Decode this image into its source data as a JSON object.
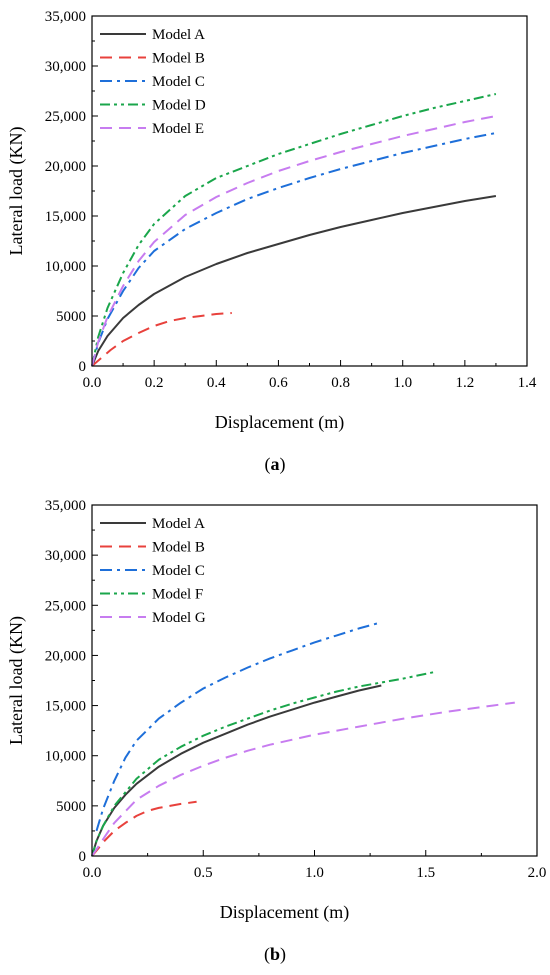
{
  "chart_data": [
    {
      "type": "line",
      "panel": "a",
      "caption_letter": "a",
      "xlabel": "Displacement (m)",
      "ylabel": "Lateral load (KN)",
      "xlim": [
        0,
        1.4
      ],
      "ylim": [
        0,
        35000
      ],
      "x_ticks": [
        0.0,
        0.2,
        0.4,
        0.6,
        0.8,
        1.0,
        1.2,
        1.4
      ],
      "x_tick_labels": [
        "0.0",
        "0.2",
        "0.4",
        "0.6",
        "0.8",
        "1.0",
        "1.2",
        "1.4"
      ],
      "y_ticks": [
        0,
        5000,
        10000,
        15000,
        20000,
        25000,
        30000,
        35000
      ],
      "y_tick_labels": [
        "0",
        "5000",
        "10,000",
        "15,000",
        "20,000",
        "25,000",
        "30,000",
        "35,000"
      ],
      "grid": false,
      "legend_position": "top-left",
      "series": [
        {
          "name": "Model A",
          "color": "#3a3a3a",
          "dash": "solid",
          "x": [
            0,
            0.02,
            0.05,
            0.1,
            0.15,
            0.2,
            0.3,
            0.4,
            0.5,
            0.6,
            0.7,
            0.8,
            0.9,
            1.0,
            1.1,
            1.2,
            1.3
          ],
          "y": [
            0,
            1500,
            3000,
            4800,
            6100,
            7200,
            8900,
            10200,
            11300,
            12200,
            13100,
            13900,
            14600,
            15300,
            15900,
            16500,
            17000
          ]
        },
        {
          "name": "Model B",
          "color": "#e8413c",
          "dash": "dashed",
          "x": [
            0,
            0.03,
            0.06,
            0.1,
            0.15,
            0.2,
            0.25,
            0.3,
            0.35,
            0.4,
            0.45
          ],
          "y": [
            0,
            800,
            1600,
            2500,
            3300,
            4000,
            4500,
            4800,
            5000,
            5200,
            5300
          ]
        },
        {
          "name": "Model C",
          "color": "#1e6fd9",
          "dash": "dashdot",
          "x": [
            0,
            0.02,
            0.05,
            0.1,
            0.15,
            0.2,
            0.3,
            0.4,
            0.5,
            0.6,
            0.7,
            0.8,
            0.9,
            1.0,
            1.1,
            1.2,
            1.3
          ],
          "y": [
            0,
            2300,
            4700,
            7500,
            9800,
            11500,
            13700,
            15300,
            16700,
            17800,
            18800,
            19700,
            20500,
            21300,
            22000,
            22700,
            23300
          ]
        },
        {
          "name": "Model D",
          "color": "#1aa64b",
          "dash": "dashdotdot",
          "x": [
            0,
            0.02,
            0.05,
            0.1,
            0.15,
            0.2,
            0.3,
            0.4,
            0.5,
            0.6,
            0.7,
            0.8,
            0.9,
            1.0,
            1.1,
            1.2,
            1.3
          ],
          "y": [
            0,
            2900,
            5800,
            9300,
            12100,
            14200,
            17000,
            18800,
            20000,
            21200,
            22200,
            23200,
            24100,
            25000,
            25800,
            26500,
            27200
          ]
        },
        {
          "name": "Model E",
          "color": "#c77cf0",
          "dash": "dashed",
          "x": [
            0,
            0.02,
            0.05,
            0.1,
            0.15,
            0.2,
            0.3,
            0.4,
            0.5,
            0.6,
            0.7,
            0.8,
            0.9,
            1.0,
            1.1,
            1.2,
            1.3
          ],
          "y": [
            0,
            2400,
            4900,
            8000,
            10500,
            12400,
            15100,
            16900,
            18300,
            19500,
            20500,
            21400,
            22200,
            23000,
            23700,
            24400,
            25000
          ]
        }
      ]
    },
    {
      "type": "line",
      "panel": "b",
      "caption_letter": "b",
      "xlabel": "Displacement (m)",
      "ylabel": "Lateral load (KN)",
      "xlim": [
        0,
        2.0
      ],
      "ylim": [
        0,
        35000
      ],
      "x_ticks": [
        0.0,
        0.5,
        1.0,
        1.5,
        2.0
      ],
      "x_tick_labels": [
        "0.0",
        "0.5",
        "1.0",
        "1.5",
        "2.0"
      ],
      "y_ticks": [
        0,
        5000,
        10000,
        15000,
        20000,
        25000,
        30000,
        35000
      ],
      "y_tick_labels": [
        "0",
        "5000",
        "10,000",
        "15,000",
        "20,000",
        "25,000",
        "30,000",
        "35,000"
      ],
      "grid": false,
      "legend_position": "top-left",
      "series": [
        {
          "name": "Model A",
          "color": "#3a3a3a",
          "dash": "solid",
          "x": [
            0,
            0.02,
            0.05,
            0.1,
            0.15,
            0.2,
            0.3,
            0.4,
            0.5,
            0.6,
            0.7,
            0.8,
            0.9,
            1.0,
            1.1,
            1.2,
            1.3
          ],
          "y": [
            0,
            1500,
            3000,
            4800,
            6100,
            7200,
            8900,
            10200,
            11300,
            12200,
            13100,
            13900,
            14600,
            15300,
            15900,
            16500,
            17000
          ]
        },
        {
          "name": "Model B",
          "color": "#e8413c",
          "dash": "dashed",
          "x": [
            0,
            0.03,
            0.06,
            0.1,
            0.15,
            0.2,
            0.25,
            0.3,
            0.35,
            0.4,
            0.47
          ],
          "y": [
            0,
            800,
            1600,
            2500,
            3300,
            4000,
            4500,
            4800,
            5000,
            5200,
            5400
          ]
        },
        {
          "name": "Model C",
          "color": "#1e6fd9",
          "dash": "dashdot",
          "x": [
            0.02,
            0.05,
            0.1,
            0.15,
            0.2,
            0.3,
            0.4,
            0.5,
            0.6,
            0.7,
            0.8,
            0.9,
            1.0,
            1.1,
            1.2,
            1.3
          ],
          "y": [
            2500,
            4700,
            7500,
            9800,
            11500,
            13700,
            15300,
            16700,
            17800,
            18800,
            19700,
            20500,
            21300,
            22000,
            22700,
            23300
          ]
        },
        {
          "name": "Model F",
          "color": "#1aa64b",
          "dash": "dashdotdot",
          "x": [
            0,
            0.02,
            0.05,
            0.1,
            0.2,
            0.3,
            0.4,
            0.5,
            0.6,
            0.7,
            0.8,
            0.9,
            1.0,
            1.1,
            1.2,
            1.3,
            1.4,
            1.55
          ],
          "y": [
            0,
            1500,
            3000,
            5000,
            7700,
            9600,
            10900,
            12000,
            12900,
            13700,
            14500,
            15200,
            15800,
            16400,
            16900,
            17300,
            17700,
            18400
          ]
        },
        {
          "name": "Model G",
          "color": "#c77cf0",
          "dash": "dashed",
          "x": [
            0,
            0.03,
            0.06,
            0.1,
            0.2,
            0.3,
            0.4,
            0.5,
            0.6,
            0.7,
            0.8,
            0.9,
            1.0,
            1.2,
            1.4,
            1.6,
            1.8,
            1.9
          ],
          "y": [
            0,
            1000,
            2000,
            3300,
            5600,
            7000,
            8100,
            9000,
            9800,
            10500,
            11100,
            11600,
            12100,
            12900,
            13700,
            14400,
            15000,
            15300
          ]
        }
      ]
    }
  ]
}
